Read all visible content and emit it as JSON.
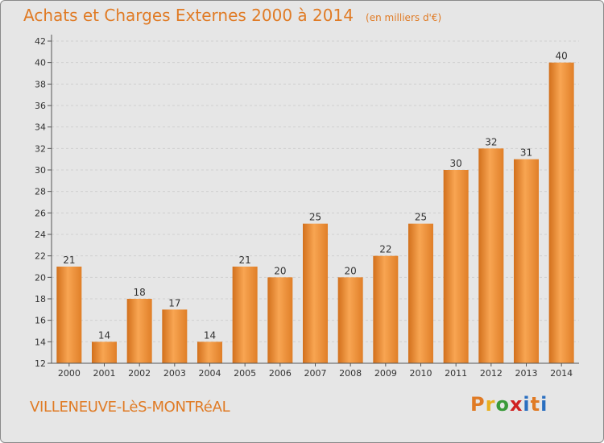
{
  "header": {
    "title": "Achats et Charges Externes 2000 à 2014",
    "unit": "(en milliers d'€)"
  },
  "commune": "VILLENEUVE-LèS-MONTRéAL",
  "logo": {
    "text": "Proxiti",
    "colors": [
      "#e07b25",
      "#e8b020",
      "#3a9a3a",
      "#d02020",
      "#2a6fc0",
      "#e07b25",
      "#2a6fc0"
    ]
  },
  "chart_data": {
    "type": "bar",
    "categories": [
      "2000",
      "2001",
      "2002",
      "2003",
      "2004",
      "2005",
      "2006",
      "2007",
      "2008",
      "2009",
      "2010",
      "2011",
      "2012",
      "2013",
      "2014"
    ],
    "values": [
      21,
      14,
      18,
      17,
      14,
      21,
      20,
      25,
      20,
      22,
      25,
      30,
      32,
      31,
      40
    ],
    "ylim": [
      12,
      42
    ],
    "yticks": [
      12,
      14,
      16,
      18,
      20,
      22,
      24,
      26,
      28,
      30,
      32,
      34,
      36,
      38,
      40,
      42
    ],
    "grid": true,
    "bar_color": "#f0913a",
    "data_labels": true
  }
}
